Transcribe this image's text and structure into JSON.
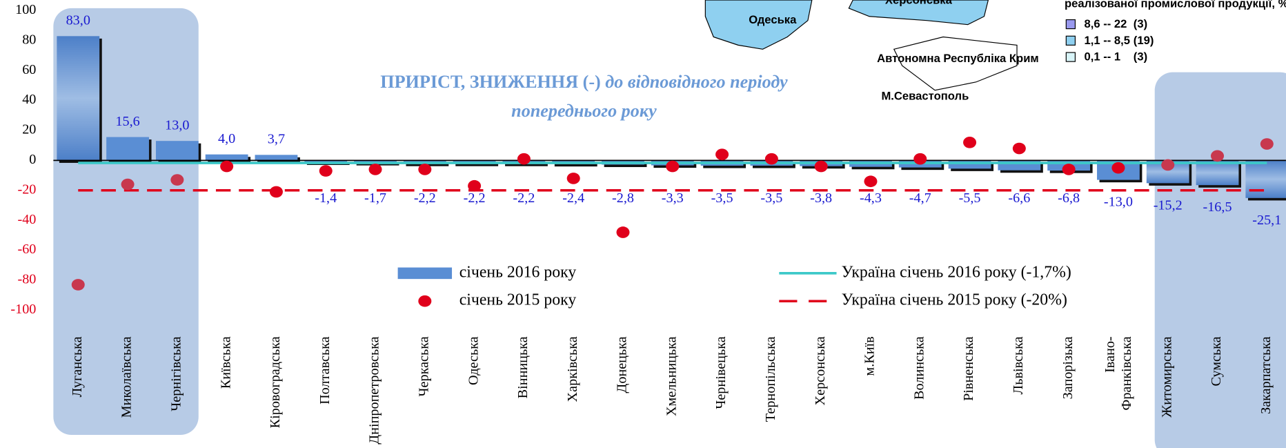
{
  "chart_data": {
    "type": "bar",
    "title": "ПРИРІСТ, ЗНИЖЕННЯ (-)",
    "title_italic": "до відповідного періоду",
    "title_line2": "попереднього року",
    "categories": [
      "Луганська",
      "Миколаївська",
      "Чернігівська",
      "Київська",
      "Кіровоградська",
      "Полтавська",
      "Дніпропетровська",
      "Черкаська",
      "Одеська",
      "Вінницька",
      "Харківська",
      "Донецька",
      "Хмельницька",
      "Чернівецька",
      "Тернопільська",
      "Херсонська",
      "м.Київ",
      "Волинська",
      "Рівненська",
      "Львівська",
      "Запорізька",
      "Івано-\nФранківська",
      "Житомирська",
      "Сумська",
      "Закарпатська"
    ],
    "series": [
      {
        "name": "січень 2016 року",
        "color": "#5a8ed4",
        "values": [
          83.0,
          15.6,
          13.0,
          4.0,
          3.7,
          -1.4,
          -1.7,
          -2.2,
          -2.2,
          -2.2,
          -2.4,
          -2.8,
          -3.3,
          -3.5,
          -3.5,
          -3.8,
          -4.3,
          -4.7,
          -5.5,
          -6.6,
          -6.8,
          -13.0,
          -15.2,
          -16.5,
          -25.1
        ],
        "value_labels": [
          "83,0",
          "15,6",
          "13,0",
          "4,0",
          "3,7",
          "-1,4",
          "-1,7",
          "-2,2",
          "-2,2",
          "-2,2",
          "-2,4",
          "-2,8",
          "-3,3",
          "-3,5",
          "-3,5",
          "-3,8",
          "-4,3",
          "-4,7",
          "-5,5",
          "-6,6",
          "-6,8",
          "-13,0",
          "-15,2",
          "-16,5",
          "-25,1"
        ]
      },
      {
        "name": "січень 2015 року",
        "color": "#e0001b",
        "values": [
          -83,
          -16,
          -13,
          -4,
          -21,
          -7,
          -6,
          -6,
          -17,
          1,
          -12,
          -48,
          -4,
          4,
          1,
          -4,
          -14,
          1,
          12,
          8,
          -6,
          -5,
          -3,
          3,
          11
        ]
      }
    ],
    "reference_lines": [
      {
        "name": "Україна січень 2016 року (-1,7%)",
        "value": -1.7,
        "color": "#3cc8c8"
      },
      {
        "name": "Україна січень 2015 року (-20%)",
        "value": -20,
        "color": "#e0001b"
      }
    ],
    "ylim": [
      -100,
      100
    ],
    "yticks": [
      100,
      80,
      60,
      40,
      20,
      0,
      -20,
      -40,
      -60,
      -80,
      -100
    ],
    "highlight_color": "#b7cbe6"
  },
  "map_fragment": {
    "regions": [
      "Одеська",
      "Херсонська",
      "Автономна Республіка Крим",
      "М.Севастополь"
    ],
    "legend_title": "реалізованої промислової продукції, %",
    "legend_items": [
      {
        "label": "8,6 -- 22",
        "count": "(3)",
        "color": "#9999ee"
      },
      {
        "label": "1,1 --  8,5",
        "count": "(19)",
        "color": "#8fd0f0"
      },
      {
        "label": "0,1 --  1",
        "count": "(3)",
        "color": "#d8f4f8"
      }
    ]
  }
}
